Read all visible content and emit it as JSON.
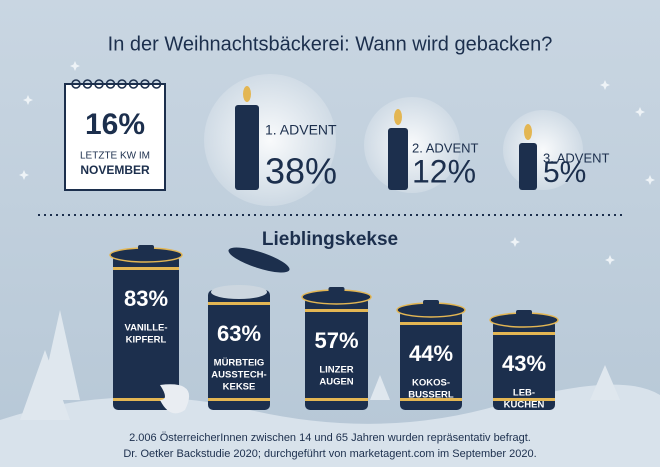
{
  "header": {
    "title": "In der Weihnachtsbäckerei: Wann wird gebacken?"
  },
  "timing": {
    "items": [
      {
        "value": "16%",
        "lines": [
          "LETZTE KW IM",
          "NOVEMBER"
        ]
      },
      {
        "value": "38%",
        "lines": [
          "1. ADVENT"
        ]
      },
      {
        "value": "12%",
        "lines": [
          "2. ADVENT"
        ]
      },
      {
        "value": "5%",
        "lines": [
          "3. ADVENT"
        ]
      }
    ]
  },
  "cookies": {
    "title": "Lieblingskekse",
    "items": [
      {
        "value": "83%",
        "lines": [
          "VANILLE-",
          "KIPFERL"
        ]
      },
      {
        "value": "63%",
        "lines": [
          "MÜRBTEIG",
          "AUSSTECH-",
          "KEKSE"
        ]
      },
      {
        "value": "57%",
        "lines": [
          "LINZER",
          "AUGEN"
        ]
      },
      {
        "value": "44%",
        "lines": [
          "KOKOS-",
          "BUSSERL"
        ]
      },
      {
        "value": "43%",
        "lines": [
          "LEB-",
          "KUCHEN"
        ]
      }
    ]
  },
  "footer": {
    "lines": [
      "2.006 ÖsterreicherInnen zwischen 14 und 65 Jahren wurden repräsentativ befragt.",
      "Dr. Oetker Backstudie 2020; durchgeführt von marketagent.com im September 2020."
    ]
  }
}
